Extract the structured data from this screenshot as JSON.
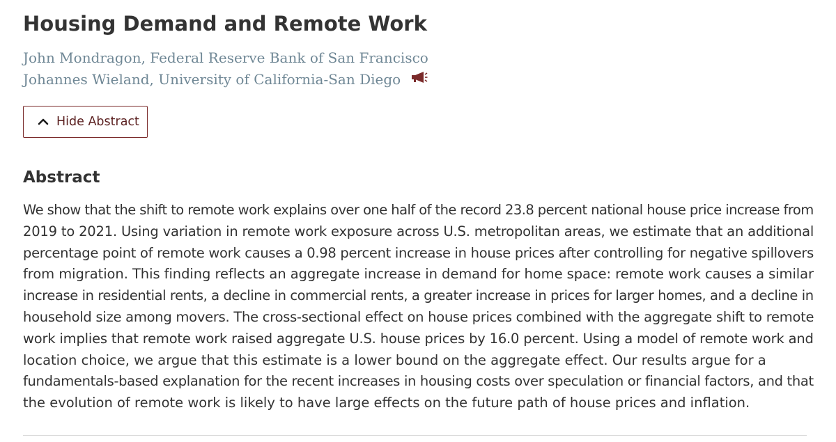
{
  "paper": {
    "title": "Housing Demand and Remote Work",
    "authors": [
      "John Mondragon, Federal Reserve Bank of San Francisco",
      "Johannes Wieland, University of California-San Diego"
    ],
    "presenter_icon": "megaphone-icon",
    "presenter_icon_color": "#7a2a2a"
  },
  "toggle": {
    "label": "Hide Abstract",
    "icon": "chevron-up-icon"
  },
  "abstract": {
    "heading": "Abstract",
    "lines": [
      "We show that the shift to remote work explains over one half of the record 23.8 percent national house price increase from",
      "2019 to 2021. Using variation in remote work exposure across U.S. metropolitan areas, we estimate that an additional",
      "percentage point of remote work causes a 0.98 percent increase in house prices after controlling for negative spillovers",
      "from migration. This finding reflects an aggregate increase in demand for home space: remote work causes a similar",
      "increase in residential rents, a decline in commercial rents, a greater increase in prices for larger homes, and a decline in",
      "household size among movers. The cross-sectional effect on house prices combined with the aggregate shift to remote",
      "work implies that remote work raised aggregate U.S. house prices by 16.0 percent. Using a model of remote work and",
      "location choice, we argue that this estimate is a lower bound on the aggregate effect. Our results argue for a",
      "fundamentals-based explanation for the recent increases in housing costs over speculation or financial factors, and that",
      "the evolution of remote work is likely to have large effects on the future path of house prices and inflation."
    ]
  },
  "colors": {
    "text": "#333333",
    "author_link": "#6f8795",
    "accent": "#7a2a2a"
  }
}
